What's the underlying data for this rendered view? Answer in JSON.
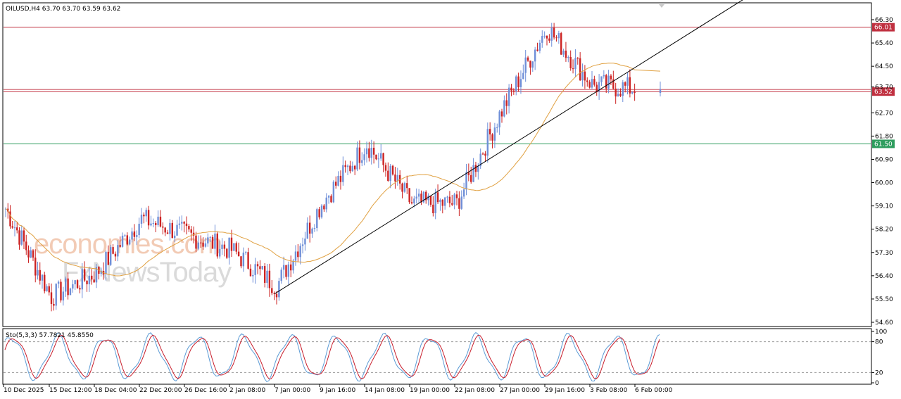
{
  "header": {
    "symbol_line": "OILUSD,H4  63.70 63.70 63.59 63.62",
    "stoch_line": "Sto(5,3,3) 57.7821 45.8550"
  },
  "watermark": {
    "line1": "economies.com",
    "line2": "FxNewsToday"
  },
  "colors": {
    "bull": "#6f8fd8",
    "bear": "#cc2222",
    "ma": "#e0a040",
    "resistance": "#c03040",
    "support": "#2e9d5e",
    "trend": "#000000",
    "stoch_main": "#5b9bd5",
    "stoch_signal": "#c81e2c"
  },
  "chart_data": [
    {
      "type": "candlestick",
      "title": "OILUSD,H4",
      "y_ticks": [
        "66.30",
        "65.40",
        "64.50",
        "63.70",
        "62.70",
        "61.80",
        "60.90",
        "60.00",
        "59.10",
        "58.20",
        "57.30",
        "56.40",
        "55.50",
        "54.60"
      ],
      "x_ticks": [
        "10 Dec 2025",
        "15 Dec 12:00",
        "18 Dec 04:00",
        "22 Dec 20:00",
        "26 Dec 16:00",
        "2 Jan 08:00",
        "7 Jan 00:00",
        "9 Jan 16:00",
        "14 Jan 08:00",
        "19 Jan 00:00",
        "22 Jan 08:00",
        "27 Jan 00:00",
        "29 Jan 16:00",
        "3 Feb 08:00",
        "6 Feb 00:00"
      ],
      "ylim": [
        54.55,
        66.6
      ],
      "horizontal_levels": [
        {
          "label": "66.01",
          "value": 66.01,
          "role": "resistance"
        },
        {
          "label": "63.52",
          "value": 63.52,
          "role": "resistance"
        },
        {
          "label": "61.50",
          "value": 61.5,
          "role": "support"
        }
      ],
      "trendline": {
        "from": {
          "x": "7 Jan 00:00",
          "y": 55.7
        },
        "to": {
          "x": "6 Feb 00:00",
          "y": 64.45
        }
      },
      "series_waypoints": [
        {
          "x": "10 Dec 2025",
          "y": 59.0
        },
        {
          "x": "15 Dec 12:00",
          "y": 55.6
        },
        {
          "x": "18 Dec 04:00",
          "y": 56.5
        },
        {
          "x": "22 Dec 20:00",
          "y": 58.6
        },
        {
          "x": "26 Dec 16:00",
          "y": 58.0
        },
        {
          "x": "2 Jan 08:00",
          "y": 57.4
        },
        {
          "x": "7 Jan 00:00",
          "y": 56.0
        },
        {
          "x": "9 Jan 16:00",
          "y": 59.2
        },
        {
          "x": "14 Jan 08:00",
          "y": 61.5
        },
        {
          "x": "19 Jan 00:00",
          "y": 59.2
        },
        {
          "x": "22 Jan 08:00",
          "y": 59.2
        },
        {
          "x": "27 Jan 00:00",
          "y": 62.8
        },
        {
          "x": "29 Jan 16:00",
          "y": 66.0
        },
        {
          "x": "3 Feb 08:00",
          "y": 63.8
        },
        {
          "x": "6 Feb 00:00",
          "y": 63.62
        }
      ],
      "close": {
        "open": 63.7,
        "high": 63.7,
        "low": 63.59,
        "close": 63.62
      }
    },
    {
      "type": "line",
      "title": "Sto(5,3,3)",
      "y_ticks": [
        "100",
        "80",
        "20",
        "0"
      ],
      "ylim": [
        0,
        100
      ],
      "levels": [
        80,
        20
      ],
      "series": [
        {
          "name": "Sto main",
          "last": 57.7821
        },
        {
          "name": "Sto signal",
          "last": 45.855
        }
      ]
    }
  ]
}
